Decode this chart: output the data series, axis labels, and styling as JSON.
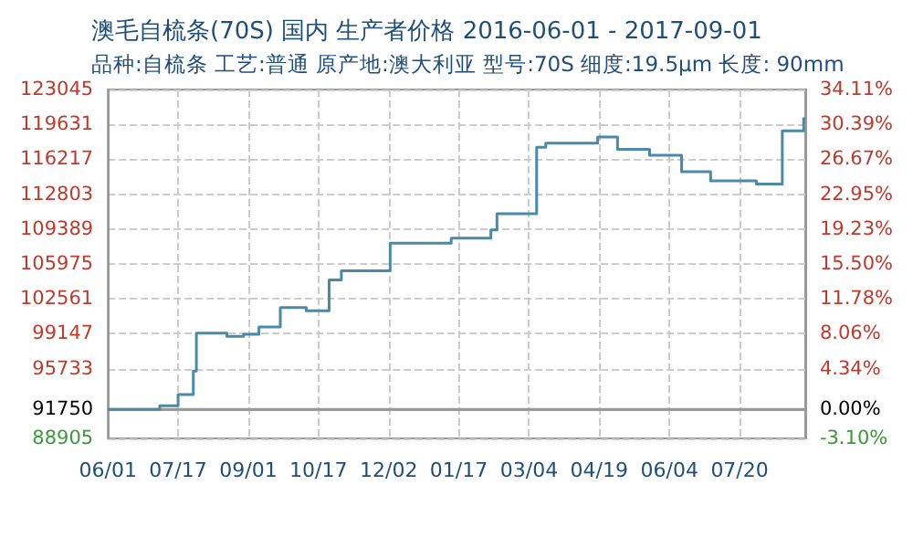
{
  "chart_data": {
    "type": "step",
    "title": "澳毛自梳条(70S) 国内 生产者价格 2016-06-01 - 2017-09-01",
    "subtitle": "品种:自梳条 工艺:普通 原产地:澳大利亚 型号:70S 细度:19.5μm 长度: 90mm",
    "x": [
      "2016-06-01",
      "2016-07-05",
      "2016-07-17",
      "2016-07-27",
      "2016-07-29",
      "2016-08-18",
      "2016-08-29",
      "2016-09-08",
      "2016-09-22",
      "2016-10-09",
      "2016-10-24",
      "2016-11-01",
      "2016-12-03",
      "2017-01-12",
      "2017-02-07",
      "2017-02-11",
      "2017-03-09",
      "2017-03-15",
      "2017-04-18",
      "2017-05-01",
      "2017-05-22",
      "2017-06-12",
      "2017-07-01",
      "2017-07-31",
      "2017-08-17",
      "2017-08-31",
      "2017-09-01"
    ],
    "series": [
      {
        "color": "#4a8aa8",
        "values": [
          91750,
          92100,
          93200,
          95500,
          99200,
          98900,
          99100,
          99800,
          101700,
          101400,
          104400,
          105300,
          108000,
          108500,
          109300,
          110900,
          117400,
          117800,
          118400,
          117200,
          116600,
          115000,
          114100,
          113800,
          119000,
          120200,
          120200
        ]
      }
    ],
    "xlim": [
      "2016-06-01",
      "2017-09-01"
    ],
    "xticks": [
      {
        "value": "2016-06-01",
        "label": "06/01"
      },
      {
        "value": "2016-07-17",
        "label": "07/17"
      },
      {
        "value": "2016-09-01",
        "label": "09/01"
      },
      {
        "value": "2016-10-17",
        "label": "10/17"
      },
      {
        "value": "2016-12-02",
        "label": "12/02"
      },
      {
        "value": "2017-01-17",
        "label": "01/17"
      },
      {
        "value": "2017-03-04",
        "label": "03/04"
      },
      {
        "value": "2017-04-19",
        "label": "04/19"
      },
      {
        "value": "2017-06-04",
        "label": "06/04"
      },
      {
        "value": "2017-07-20",
        "label": "07/20"
      }
    ],
    "ylim": [
      88905,
      123045
    ],
    "yticks": [
      88905,
      91750,
      95733,
      99147,
      102561,
      105975,
      109389,
      112803,
      116217,
      119631,
      123045
    ],
    "y2lim": [
      -3.1,
      34.11
    ],
    "y2ticks": [
      {
        "value": -3.1,
        "label": "-3.10%"
      },
      {
        "value": 0,
        "label": "0.00%"
      },
      {
        "value": 4.34,
        "label": "4.34%"
      },
      {
        "value": 8.06,
        "label": "8.06%"
      },
      {
        "value": 11.78,
        "label": "11.78%"
      },
      {
        "value": 15.5,
        "label": "15.50%"
      },
      {
        "value": 19.23,
        "label": "19.23%"
      },
      {
        "value": 22.95,
        "label": "22.95%"
      },
      {
        "value": 26.67,
        "label": "26.67%"
      },
      {
        "value": 30.39,
        "label": "30.39%"
      },
      {
        "value": 34.11,
        "label": "34.11%"
      }
    ],
    "ref_lines": [
      {
        "axis": "y",
        "value": 91750,
        "color": "#999999",
        "line_style": "solid"
      }
    ],
    "grid": true,
    "marker": "none",
    "line_style": "solid"
  }
}
